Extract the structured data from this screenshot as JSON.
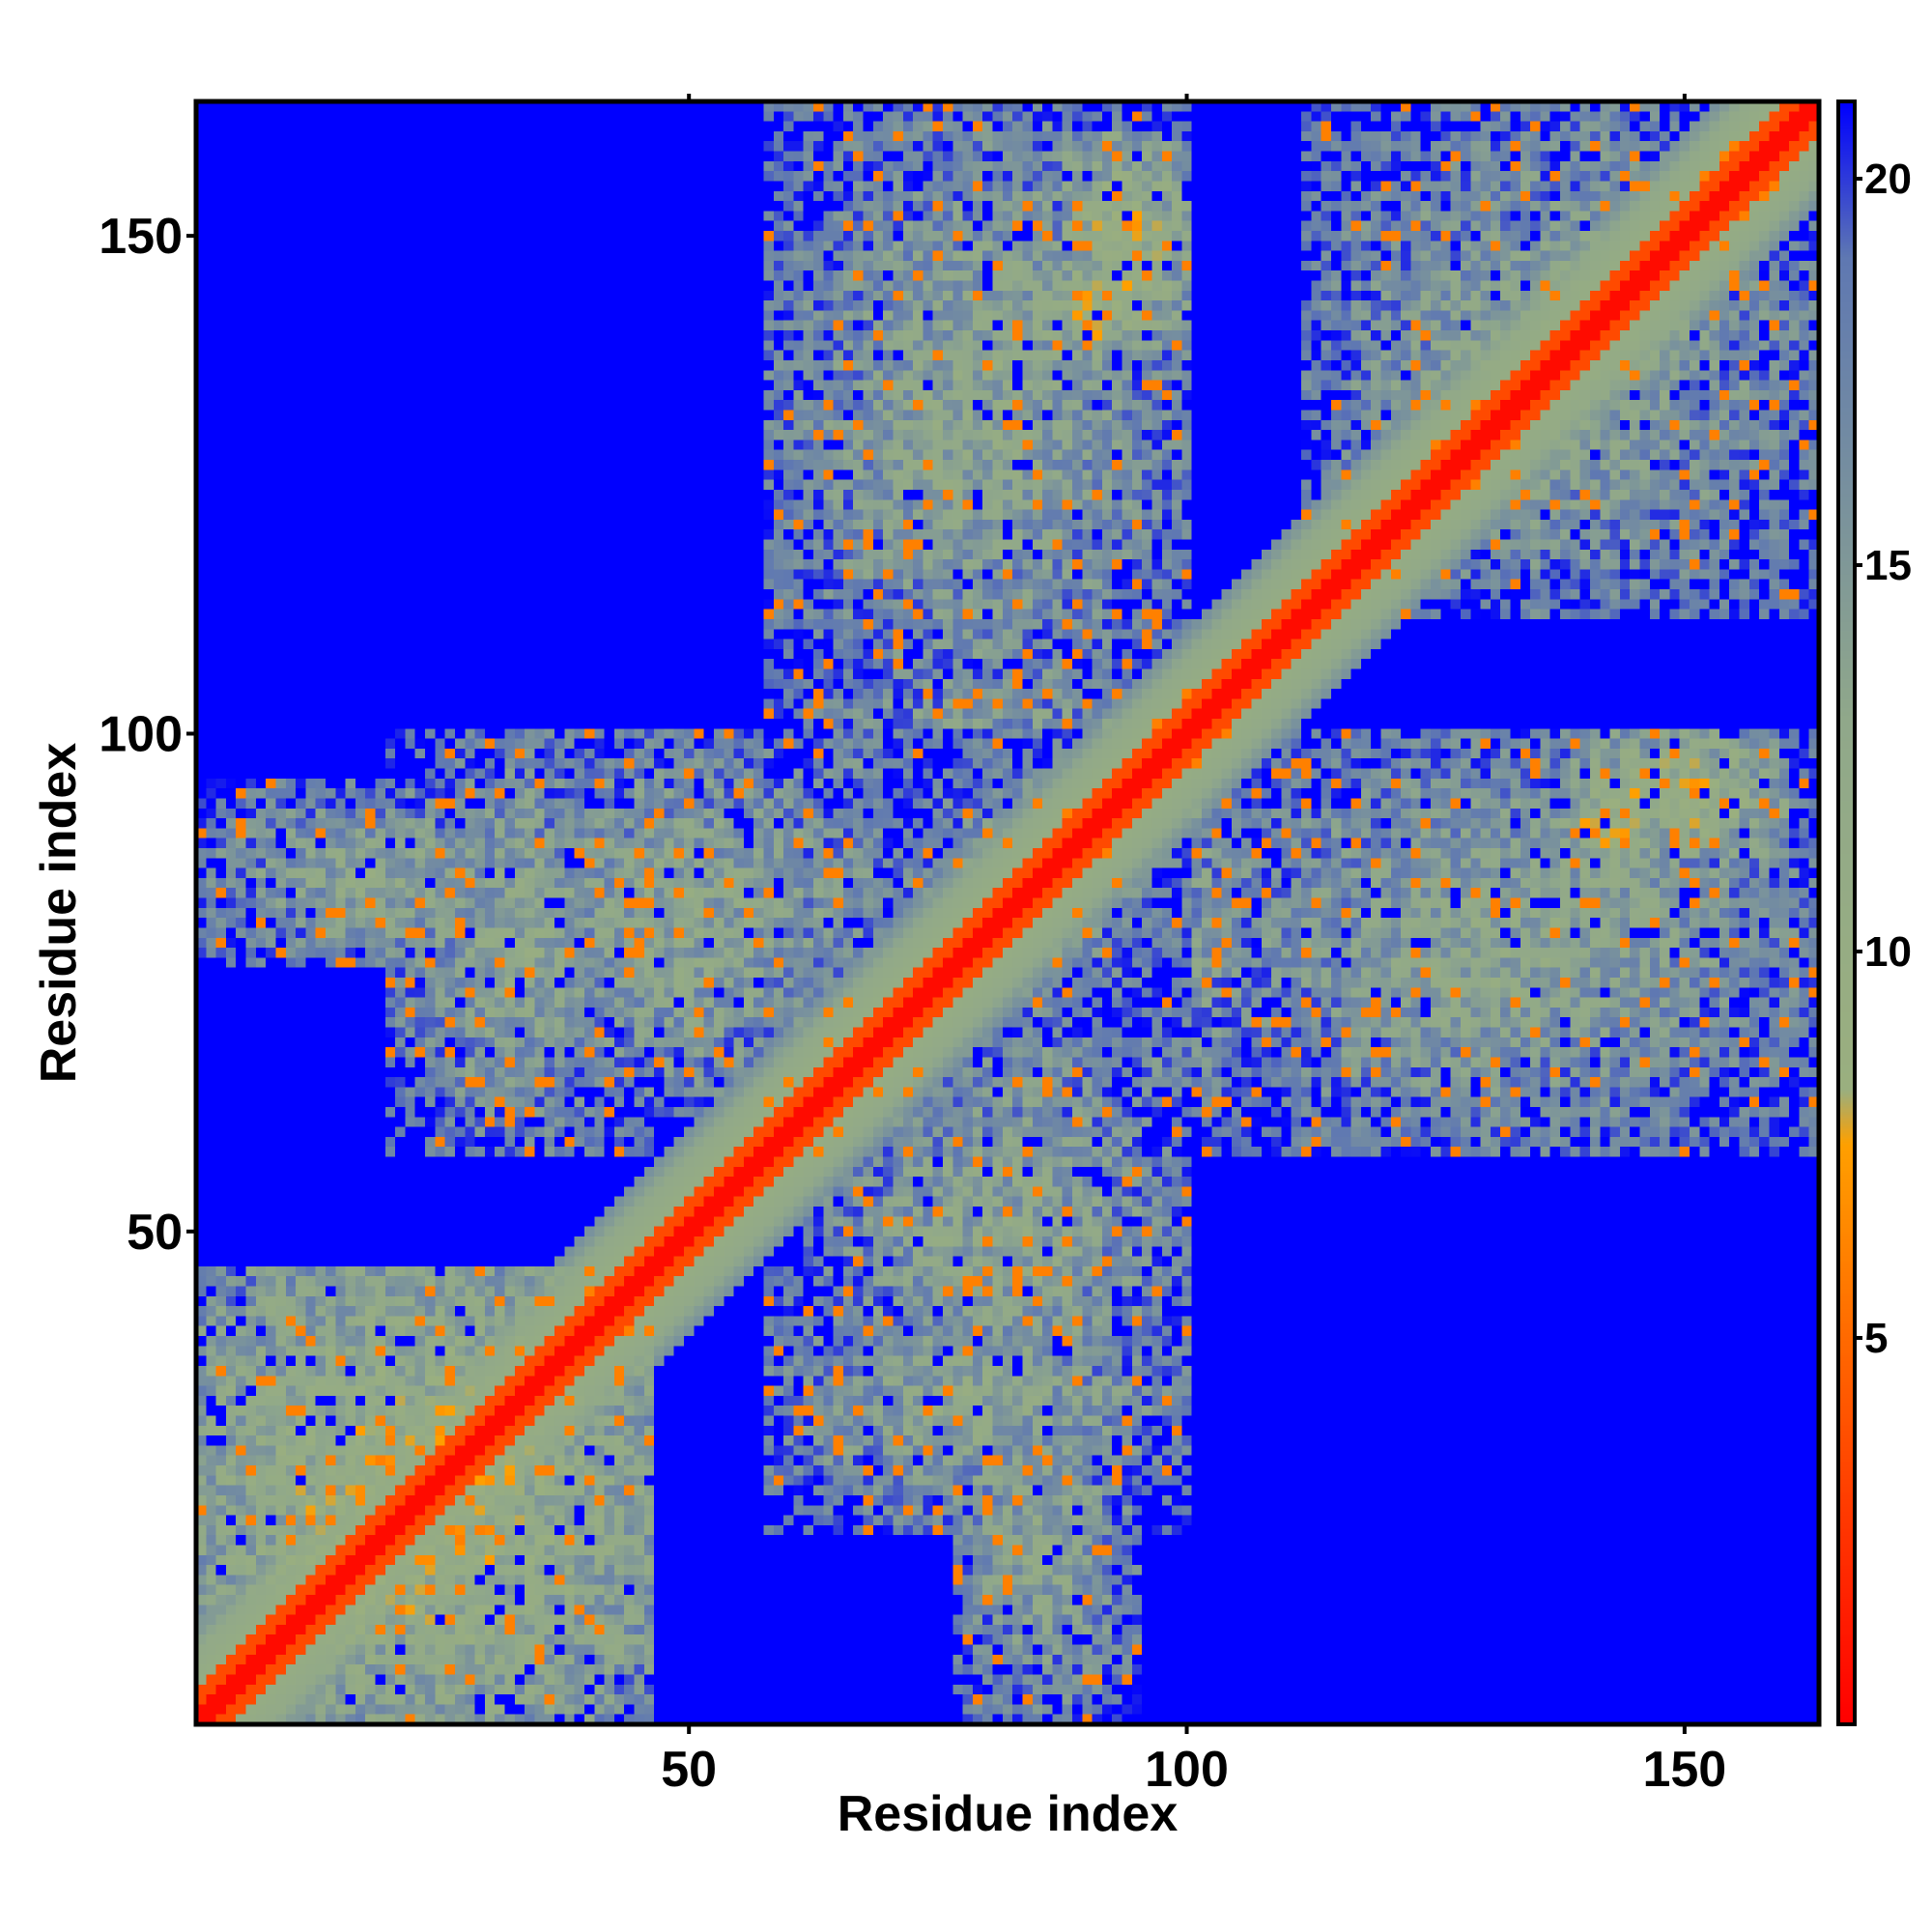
{
  "chart_data": {
    "type": "heatmap",
    "title": "",
    "xlabel": "Residue index",
    "ylabel": "Residue index",
    "n_residues": 163,
    "xlim": [
      1,
      163
    ],
    "ylim": [
      1,
      163
    ],
    "x_ticks": [
      50,
      100,
      150
    ],
    "y_ticks": [
      50,
      100,
      150
    ],
    "colorbar": {
      "range": [
        0,
        21
      ],
      "ticks": [
        5,
        10,
        15,
        20
      ],
      "saturates_above": 21,
      "stops": [
        {
          "value": 0,
          "color": "#ff0000"
        },
        {
          "value": 5,
          "color": "#ff6a00"
        },
        {
          "value": 7.5,
          "color": "#ffa000"
        },
        {
          "value": 8.2,
          "color": "#9aaf7f"
        },
        {
          "value": 13,
          "color": "#90a88a"
        },
        {
          "value": 19,
          "color": "#5f78b2"
        },
        {
          "value": 21,
          "color": "#0000ff"
        }
      ]
    },
    "background_value": 21,
    "secondary_structure_contacts": {
      "helix_diagonal_bands": [
        [
          1,
          14
        ],
        [
          20,
          50
        ],
        [
          58,
          96
        ],
        [
          108,
          163
        ]
      ],
      "contact_blocks": [
        {
          "x_range": [
            1,
            46
          ],
          "y_range": [
            1,
            46
          ],
          "level": "close"
        },
        {
          "x_range": [
            29,
            70
          ],
          "y_range": [
            62,
            100
          ],
          "level": "medium"
        },
        {
          "x_range": [
            1,
            35
          ],
          "y_range": [
            77,
            95
          ],
          "level": "medium"
        },
        {
          "x_range": [
            58,
            100
          ],
          "y_range": [
            20,
            46
          ],
          "level": "medium"
        },
        {
          "x_range": [
            70,
            112
          ],
          "y_range": [
            62,
            100
          ],
          "level": "medium"
        },
        {
          "x_range": [
            58,
            100
          ],
          "y_range": [
            100,
            163
          ],
          "level": "medium"
        },
        {
          "x_range": [
            88,
            100
          ],
          "y_range": [
            140,
            160
          ],
          "level": "close"
        },
        {
          "x_range": [
            112,
            163
          ],
          "y_range": [
            62,
            100
          ],
          "level": "medium"
        },
        {
          "x_range": [
            137,
            148
          ],
          "y_range": [
            85,
            97
          ],
          "level": "close"
        },
        {
          "x_range": [
            112,
            163
          ],
          "y_range": [
            112,
            163
          ],
          "level": "medium"
        }
      ]
    }
  }
}
